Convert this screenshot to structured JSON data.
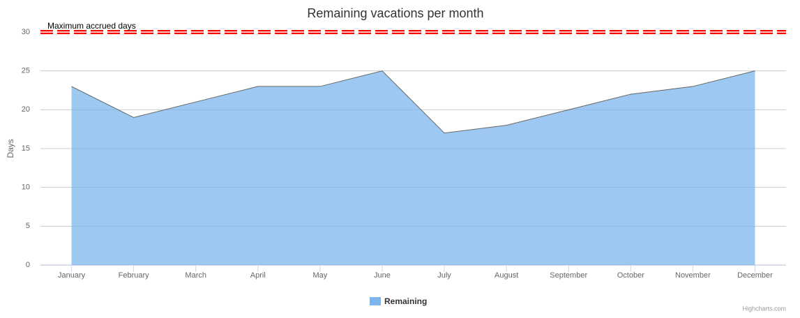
{
  "chart_data": {
    "type": "area",
    "title": "Remaining vacations per month",
    "y_label": "Days",
    "categories": [
      "January",
      "February",
      "March",
      "April",
      "May",
      "June",
      "July",
      "August",
      "September",
      "October",
      "November",
      "December"
    ],
    "series": [
      {
        "name": "Remaining",
        "color": "#7cb5ec",
        "line_color": "#666666",
        "values": [
          23,
          19,
          21,
          23,
          23,
          25,
          17,
          18,
          20,
          22,
          23,
          25
        ]
      }
    ],
    "ylim": [
      0,
      30
    ],
    "yticks": [
      0,
      5,
      10,
      15,
      20,
      25,
      30
    ],
    "grid": true,
    "plot_line": {
      "value": 30,
      "label": "Maximum accrued days",
      "color": "#ff0000"
    },
    "credits": "Highcharts.com"
  }
}
